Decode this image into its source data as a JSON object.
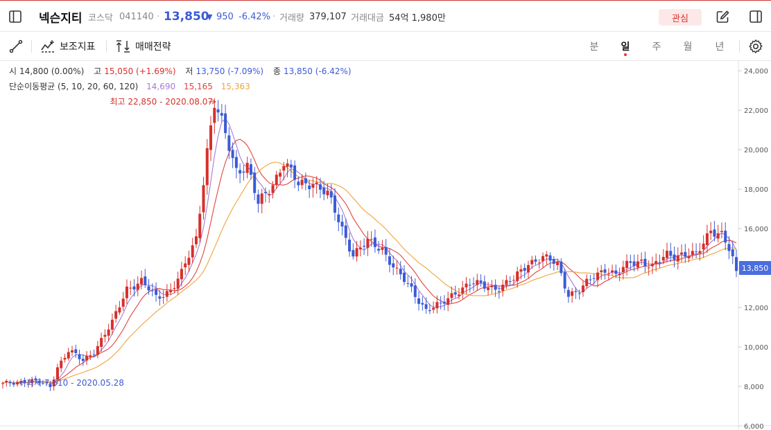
{
  "header": {
    "stock_name": "넥슨지티",
    "market": "코스닥",
    "code": "041140",
    "price": "13,850",
    "change_arrow": "▼",
    "change": "950",
    "change_pct": "-6.42%",
    "volume_label": "거래량",
    "volume": "379,107",
    "amount_label": "거래대금",
    "amount": "54억 1,980만",
    "interest_label": "관심"
  },
  "toolbar": {
    "indicator_label": "보조지표",
    "strategy_label": "매매전략",
    "periods": [
      "분",
      "일",
      "주",
      "월",
      "년"
    ],
    "active_period": "일"
  },
  "ohlc": {
    "open_label": "시",
    "open": "14,800 (0.00%)",
    "high_label": "고",
    "high": "15,050 (+1.69%)",
    "low_label": "저",
    "low": "13,750 (-7.09%)",
    "close_label": "종",
    "close": "13,850 (-6.42%)"
  },
  "ma": {
    "label": "단순이동평균 (5, 10, 20, 60, 120)",
    "v1": "14,690",
    "v2": "15,165",
    "v3": "15,363",
    "colors": [
      "#a77ad8",
      "#e0433c",
      "#f0a33a"
    ]
  },
  "annotations": {
    "high": "최고 22,850 - 2020.08.07",
    "low": "최저 7,610 - 2020.05.28"
  },
  "colors": {
    "up": "#d6302a",
    "down": "#3b5bd6",
    "accent": "#d6302a",
    "price_tag": "#4a6de0"
  },
  "chart_data": {
    "type": "candlestick",
    "y_ticks": [
      "24,000",
      "22,000",
      "20,000",
      "18,000",
      "16,000",
      "14,000",
      "12,000",
      "10,000",
      "8,000",
      "6,000"
    ],
    "ylim": [
      6000,
      24500
    ],
    "last_price_label": "13,850",
    "anchors": [
      [
        0,
        8100
      ],
      [
        6,
        8300
      ],
      [
        10,
        8200
      ],
      [
        13,
        8000
      ],
      [
        15,
        9000
      ],
      [
        18,
        9800
      ],
      [
        22,
        9300
      ],
      [
        25,
        9800
      ],
      [
        30,
        11200
      ],
      [
        34,
        13000
      ],
      [
        38,
        13300
      ],
      [
        42,
        12500
      ],
      [
        46,
        12900
      ],
      [
        49,
        13700
      ],
      [
        53,
        15500
      ],
      [
        56,
        20000
      ],
      [
        58,
        22300
      ],
      [
        60,
        21300
      ],
      [
        64,
        19000
      ],
      [
        67,
        19200
      ],
      [
        70,
        17200
      ],
      [
        74,
        18300
      ],
      [
        77,
        19400
      ],
      [
        81,
        18200
      ],
      [
        85,
        18400
      ],
      [
        89,
        17700
      ],
      [
        93,
        16000
      ],
      [
        96,
        14700
      ],
      [
        100,
        15300
      ],
      [
        104,
        15000
      ],
      [
        108,
        13800
      ],
      [
        112,
        12900
      ],
      [
        116,
        11900
      ],
      [
        120,
        12100
      ],
      [
        124,
        12800
      ],
      [
        128,
        13200
      ],
      [
        132,
        13100
      ],
      [
        136,
        13000
      ],
      [
        140,
        13400
      ],
      [
        144,
        14300
      ],
      [
        148,
        14500
      ],
      [
        152,
        14200
      ],
      [
        155,
        12700
      ],
      [
        158,
        12800
      ],
      [
        162,
        13600
      ],
      [
        165,
        14000
      ],
      [
        168,
        13600
      ],
      [
        172,
        14300
      ],
      [
        175,
        14400
      ],
      [
        178,
        14000
      ],
      [
        182,
        14700
      ],
      [
        186,
        14700
      ],
      [
        190,
        14600
      ],
      [
        194,
        16000
      ],
      [
        197,
        15700
      ],
      [
        199,
        14900
      ],
      [
        201,
        13850
      ]
    ]
  }
}
